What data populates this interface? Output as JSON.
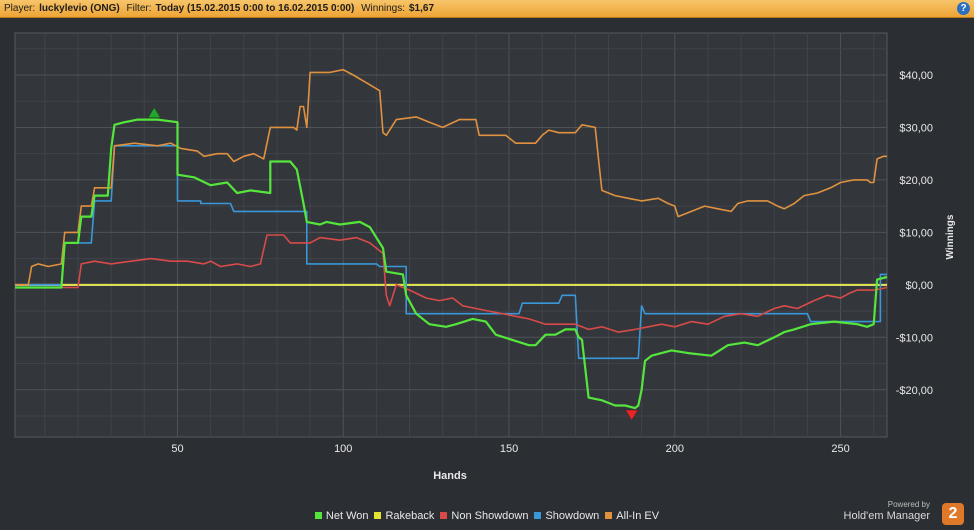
{
  "header": {
    "player_label": "Player:",
    "player": "luckylevio (ONG)",
    "filter_label": "Filter:",
    "filter": "Today (15.02.2015 0:00 to 16.02.2015 0:00)",
    "winnings_label": "Winnings:",
    "winnings": "$1,67",
    "help_glyph": "?"
  },
  "branding": {
    "powered": "Powered by",
    "name": "Hold'em Manager",
    "logo_number": "2"
  },
  "chart_data": {
    "type": "line",
    "xlabel": "Hands",
    "ylabel": "Winnings",
    "xlim": [
      1,
      264
    ],
    "ylim": [
      -29,
      48
    ],
    "x_ticks": [
      50,
      100,
      150,
      200,
      250
    ],
    "x_tick_labels": [
      "50",
      "100",
      "150",
      "200",
      "250"
    ],
    "y_ticks": [
      40,
      30,
      20,
      10,
      0,
      -10,
      -20
    ],
    "y_tick_labels": [
      "$40,00",
      "$30,00",
      "$20,00",
      "$10,00",
      "$0,00",
      "-$10,00",
      "-$20,00"
    ],
    "grid": true,
    "zero_line": true,
    "legend_position": "bottom",
    "series": [
      {
        "name": "Net Won",
        "color": "#55e63c",
        "points": [
          [
            1,
            -0.5
          ],
          [
            15,
            -0.5
          ],
          [
            16,
            8
          ],
          [
            20,
            8
          ],
          [
            21,
            13
          ],
          [
            24,
            13
          ],
          [
            25,
            17
          ],
          [
            29,
            17
          ],
          [
            30,
            26
          ],
          [
            31,
            30.5
          ],
          [
            34,
            31
          ],
          [
            38,
            31.5
          ],
          [
            44,
            31.5
          ],
          [
            50,
            31
          ],
          [
            50,
            21
          ],
          [
            55,
            20.5
          ],
          [
            60,
            19
          ],
          [
            65,
            19.5
          ],
          [
            68,
            17.5
          ],
          [
            72,
            18
          ],
          [
            78,
            17.5
          ],
          [
            78,
            23.5
          ],
          [
            84,
            23.5
          ],
          [
            86,
            22
          ],
          [
            88,
            15.5
          ],
          [
            89,
            12
          ],
          [
            93,
            11.5
          ],
          [
            95,
            12
          ],
          [
            99,
            11.5
          ],
          [
            105,
            12
          ],
          [
            108,
            11
          ],
          [
            112,
            7
          ],
          [
            113,
            2.5
          ],
          [
            118,
            2
          ],
          [
            119,
            -2
          ],
          [
            122,
            -5.5
          ],
          [
            126,
            -7.5
          ],
          [
            131,
            -8
          ],
          [
            134,
            -7.5
          ],
          [
            139,
            -6.5
          ],
          [
            143,
            -7
          ],
          [
            146,
            -9.5
          ],
          [
            151,
            -10.5
          ],
          [
            156,
            -11.5
          ],
          [
            158,
            -11.5
          ],
          [
            161,
            -9.5
          ],
          [
            164,
            -9.5
          ],
          [
            167,
            -8.5
          ],
          [
            170,
            -8.5
          ],
          [
            171,
            -10
          ],
          [
            172,
            -10.5
          ],
          [
            173,
            -16
          ],
          [
            174,
            -21.5
          ],
          [
            178,
            -22
          ],
          [
            180,
            -22.5
          ],
          [
            182,
            -23
          ],
          [
            185,
            -23
          ],
          [
            188,
            -23.5
          ],
          [
            189,
            -23
          ],
          [
            190,
            -20
          ],
          [
            191,
            -14.5
          ],
          [
            193,
            -13.5
          ],
          [
            196,
            -13
          ],
          [
            199,
            -12.5
          ],
          [
            204,
            -13
          ],
          [
            211,
            -13.5
          ],
          [
            216,
            -11.5
          ],
          [
            221,
            -11
          ],
          [
            225,
            -11.5
          ],
          [
            230,
            -10
          ],
          [
            233,
            -9
          ],
          [
            236,
            -8.5
          ],
          [
            241,
            -7.5
          ],
          [
            248,
            -7
          ],
          [
            255,
            -7.5
          ],
          [
            258,
            -8
          ],
          [
            260,
            -7.5
          ],
          [
            261,
            1
          ],
          [
            264,
            1.5
          ]
        ]
      },
      {
        "name": "Rakeback",
        "color": "#e3e332",
        "points": [
          [
            1,
            0
          ],
          [
            264,
            0
          ]
        ]
      },
      {
        "name": "Non Showdown",
        "color": "#d94a48",
        "points": [
          [
            1,
            -0.5
          ],
          [
            20,
            -0.5
          ],
          [
            21,
            4
          ],
          [
            25,
            4.5
          ],
          [
            30,
            4
          ],
          [
            36,
            4.5
          ],
          [
            42,
            5
          ],
          [
            48,
            4.5
          ],
          [
            53,
            4.5
          ],
          [
            58,
            4
          ],
          [
            60,
            4.5
          ],
          [
            63,
            3.5
          ],
          [
            68,
            4
          ],
          [
            72,
            3.5
          ],
          [
            75,
            4
          ],
          [
            77,
            9.5
          ],
          [
            82,
            9.5
          ],
          [
            84,
            8
          ],
          [
            90,
            8
          ],
          [
            93,
            9
          ],
          [
            99,
            8.5
          ],
          [
            104,
            9
          ],
          [
            108,
            8
          ],
          [
            112,
            6
          ],
          [
            113,
            -2
          ],
          [
            114,
            -4
          ],
          [
            116,
            0
          ],
          [
            120,
            -1
          ],
          [
            125,
            -2.5
          ],
          [
            129,
            -3
          ],
          [
            133,
            -2.5
          ],
          [
            136,
            -4
          ],
          [
            140,
            -4.5
          ],
          [
            144,
            -5
          ],
          [
            148,
            -5.5
          ],
          [
            152,
            -6
          ],
          [
            156,
            -6.5
          ],
          [
            161,
            -7.5
          ],
          [
            165,
            -7.5
          ],
          [
            170,
            -7.5
          ],
          [
            174,
            -8.5
          ],
          [
            178,
            -8
          ],
          [
            183,
            -9
          ],
          [
            188,
            -8.5
          ],
          [
            192,
            -8
          ],
          [
            196,
            -7.5
          ],
          [
            200,
            -8
          ],
          [
            205,
            -7
          ],
          [
            210,
            -7.5
          ],
          [
            215,
            -6
          ],
          [
            220,
            -5.5
          ],
          [
            225,
            -6
          ],
          [
            230,
            -4.5
          ],
          [
            233,
            -4
          ],
          [
            237,
            -4.5
          ],
          [
            242,
            -3
          ],
          [
            246,
            -2
          ],
          [
            250,
            -2.5
          ],
          [
            253,
            -1.5
          ],
          [
            255,
            -1
          ],
          [
            260,
            -1
          ],
          [
            264,
            -0.5
          ]
        ]
      },
      {
        "name": "Showdown",
        "color": "#3a97d8",
        "points": [
          [
            1,
            0
          ],
          [
            15,
            0
          ],
          [
            16,
            8
          ],
          [
            24,
            8
          ],
          [
            25,
            16
          ],
          [
            30,
            16
          ],
          [
            31,
            26.5
          ],
          [
            34,
            26.5
          ],
          [
            37,
            26.5
          ],
          [
            42,
            26.5
          ],
          [
            44,
            26.5
          ],
          [
            48,
            26.5
          ],
          [
            50,
            26.5
          ],
          [
            50,
            16
          ],
          [
            57,
            16
          ],
          [
            57,
            15.5
          ],
          [
            66,
            15.5
          ],
          [
            67,
            14
          ],
          [
            89,
            14
          ],
          [
            89,
            4
          ],
          [
            110,
            4
          ],
          [
            111,
            3.5
          ],
          [
            119,
            3.5
          ],
          [
            119,
            -5.5
          ],
          [
            153,
            -5.5
          ],
          [
            154,
            -3.5
          ],
          [
            165,
            -3.5
          ],
          [
            166,
            -2
          ],
          [
            170,
            -2
          ],
          [
            171,
            -14
          ],
          [
            189,
            -14
          ],
          [
            190,
            -4
          ],
          [
            191,
            -5.5
          ],
          [
            240,
            -5.5
          ],
          [
            241,
            -7
          ],
          [
            262,
            -7
          ],
          [
            262,
            2
          ],
          [
            264,
            2
          ]
        ]
      },
      {
        "name": "All-In EV",
        "color": "#e0913f",
        "points": [
          [
            1,
            0
          ],
          [
            5,
            0
          ],
          [
            6,
            3.5
          ],
          [
            8,
            4
          ],
          [
            11,
            3.5
          ],
          [
            15,
            4
          ],
          [
            16,
            10
          ],
          [
            20,
            10
          ],
          [
            21,
            15
          ],
          [
            24,
            15
          ],
          [
            25,
            18.5
          ],
          [
            30,
            18.5
          ],
          [
            31,
            26.5
          ],
          [
            37,
            27
          ],
          [
            44,
            26.5
          ],
          [
            48,
            27
          ],
          [
            51,
            26
          ],
          [
            56,
            25.5
          ],
          [
            58,
            24.5
          ],
          [
            62,
            25
          ],
          [
            65,
            25
          ],
          [
            67,
            23.5
          ],
          [
            70,
            24.5
          ],
          [
            73,
            25
          ],
          [
            76,
            24
          ],
          [
            78,
            30
          ],
          [
            85,
            30
          ],
          [
            86,
            29.5
          ],
          [
            87,
            34
          ],
          [
            88,
            34
          ],
          [
            89,
            30
          ],
          [
            90,
            40.5
          ],
          [
            93,
            40.5
          ],
          [
            96,
            40.5
          ],
          [
            100,
            41
          ],
          [
            103,
            40
          ],
          [
            107,
            38.5
          ],
          [
            111,
            37
          ],
          [
            112,
            29
          ],
          [
            113,
            28.5
          ],
          [
            116,
            31.5
          ],
          [
            122,
            32
          ],
          [
            126,
            31
          ],
          [
            130,
            30
          ],
          [
            135,
            31.5
          ],
          [
            140,
            31.5
          ],
          [
            141,
            28.5
          ],
          [
            149,
            28.5
          ],
          [
            152,
            27
          ],
          [
            158,
            27
          ],
          [
            160,
            28.5
          ],
          [
            162,
            29.5
          ],
          [
            165,
            29
          ],
          [
            170,
            29
          ],
          [
            172,
            30.5
          ],
          [
            176,
            30
          ],
          [
            177,
            24
          ],
          [
            178,
            18
          ],
          [
            182,
            17
          ],
          [
            186,
            16.5
          ],
          [
            190,
            16
          ],
          [
            195,
            16.5
          ],
          [
            198,
            15.5
          ],
          [
            200,
            15
          ],
          [
            201,
            13
          ],
          [
            203,
            13.5
          ],
          [
            205,
            14
          ],
          [
            209,
            15
          ],
          [
            213,
            14.5
          ],
          [
            217,
            14
          ],
          [
            219,
            15.5
          ],
          [
            222,
            16
          ],
          [
            228,
            16
          ],
          [
            231,
            15
          ],
          [
            233,
            14.5
          ],
          [
            236,
            15.5
          ],
          [
            239,
            17
          ],
          [
            243,
            17.5
          ],
          [
            247,
            18.5
          ],
          [
            250,
            19.5
          ],
          [
            254,
            20
          ],
          [
            258,
            20
          ],
          [
            259,
            19.5
          ],
          [
            260,
            19.5
          ],
          [
            261,
            24
          ],
          [
            263,
            24.5
          ],
          [
            264,
            24.5
          ]
        ]
      }
    ],
    "markers": [
      {
        "shape": "triangle-up",
        "color": "#1fa82b",
        "x": 43,
        "y": 31.5
      },
      {
        "shape": "triangle-down",
        "color": "#e82525",
        "x": 187,
        "y": -23.5
      }
    ]
  }
}
